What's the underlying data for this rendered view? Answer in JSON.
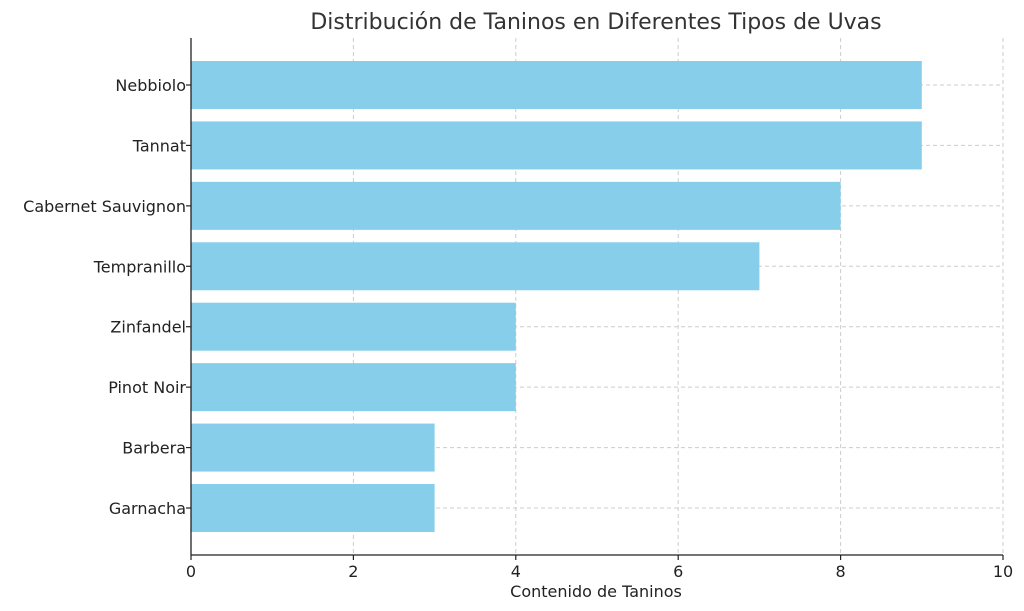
{
  "chart_data": {
    "type": "bar",
    "orientation": "horizontal",
    "title": "Distribución de Taninos en Diferentes Tipos de Uvas",
    "xlabel": "Contenido de Taninos",
    "ylabel": "",
    "categories": [
      "Nebbiolo",
      "Tannat",
      "Cabernet Sauvignon",
      "Tempranillo",
      "Zinfandel",
      "Pinot Noir",
      "Barbera",
      "Garnacha"
    ],
    "values": [
      9,
      9,
      8,
      7,
      4,
      4,
      3,
      3
    ],
    "xlim": [
      0,
      10
    ],
    "xticks": [
      0,
      2,
      4,
      6,
      8,
      10
    ],
    "grid": true,
    "colors": {
      "bar": "#87CEEB",
      "axis": "#222222",
      "grid": "#cccccc",
      "text": "#222222"
    }
  }
}
